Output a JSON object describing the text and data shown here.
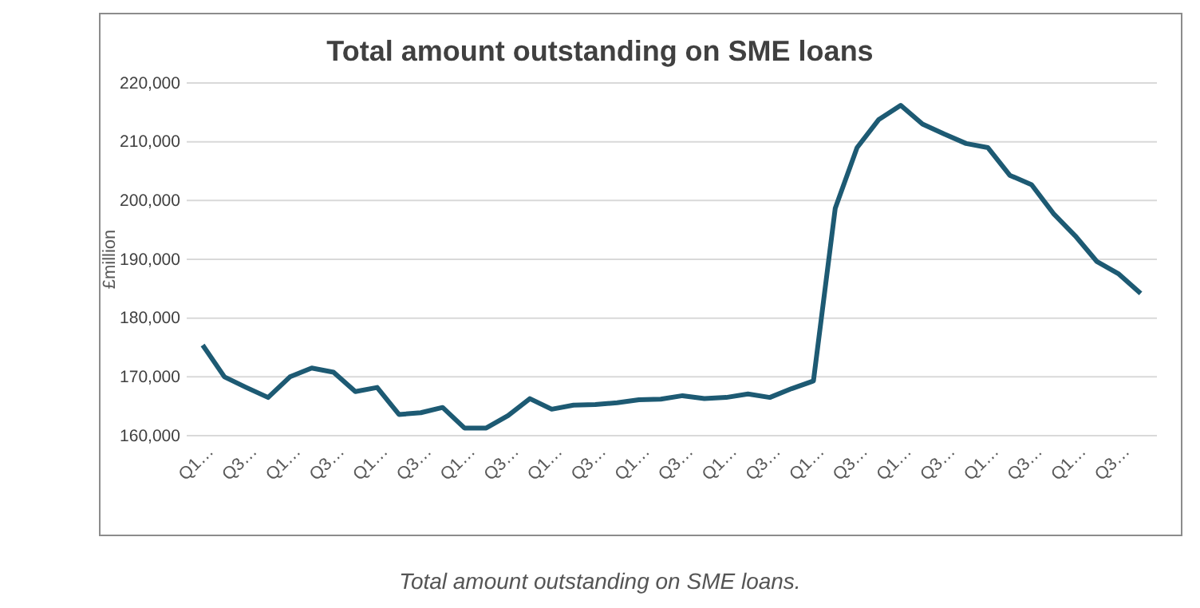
{
  "chart_data": {
    "type": "line",
    "title": "Total amount outstanding on SME loans",
    "ylabel": "£million",
    "annotations": [
      "Total amount outstanding on SME loans."
    ],
    "categories": [
      "Q1…",
      null,
      "Q3…",
      null,
      "Q1…",
      null,
      "Q3…",
      null,
      "Q1…",
      null,
      "Q3…",
      null,
      "Q1…",
      null,
      "Q3…",
      null,
      "Q1…",
      null,
      "Q3…",
      null,
      "Q1…",
      null,
      "Q3…",
      null,
      "Q1…",
      null,
      "Q3…",
      null,
      "Q1…",
      null,
      "Q3…",
      null,
      "Q1…",
      null,
      "Q3…",
      null,
      "Q1…",
      null,
      "Q3…",
      null,
      "Q1…",
      null,
      "Q3…",
      null
    ],
    "series": [
      {
        "color": "#1d5a73",
        "values": [
          175400,
          170000,
          168200,
          166500,
          170000,
          171500,
          170800,
          167500,
          168200,
          163600,
          163900,
          164800,
          161300,
          161300,
          163400,
          166300,
          164500,
          165200,
          165300,
          165600,
          166100,
          166200,
          166800,
          166300,
          166500,
          167100,
          166500,
          168000,
          169300,
          198700,
          209000,
          213800,
          216200,
          213000,
          211300,
          209700,
          209000,
          204300,
          202700,
          197800,
          194000,
          189600,
          187500,
          184200
        ]
      }
    ],
    "ylim": [
      160000,
      220000
    ],
    "yticks": [
      {
        "value": 160000,
        "label": "160,000"
      },
      {
        "value": 170000,
        "label": "170,000"
      },
      {
        "value": 180000,
        "label": "180,000"
      },
      {
        "value": 190000,
        "label": "190,000"
      },
      {
        "value": 200000,
        "label": "200,000"
      },
      {
        "value": 210000,
        "label": "210,000"
      },
      {
        "value": 220000,
        "label": "220,000"
      }
    ],
    "grid": "y",
    "marker": "none",
    "line_style": "solid"
  }
}
